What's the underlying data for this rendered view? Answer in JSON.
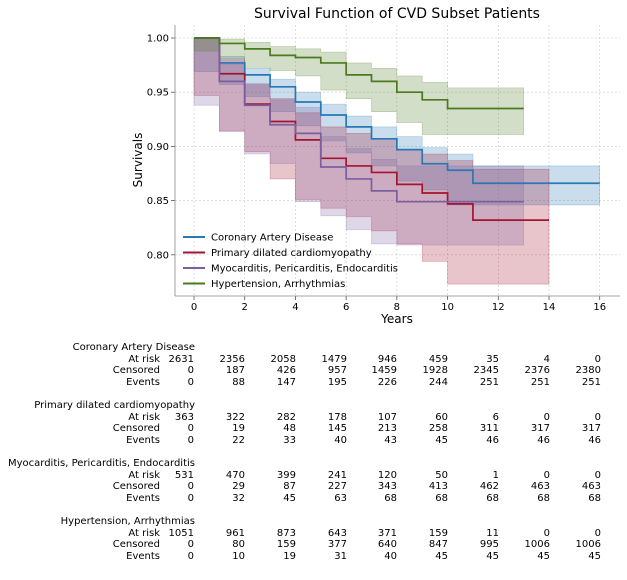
{
  "chart_data": {
    "type": "line",
    "title": "Survival Function of CVD Subset Patients",
    "xlabel": "Years",
    "ylabel": "Survivals",
    "xlim": [
      -0.75,
      16.8
    ],
    "ylim": [
      0.762,
      1.012
    ],
    "xticks": [
      "0",
      "2",
      "4",
      "6",
      "8",
      "10",
      "12",
      "14",
      "16"
    ],
    "yticks": [
      "0.80",
      "0.85",
      "0.90",
      "0.95",
      "1.00"
    ],
    "grid": true,
    "legend_position": "lower-left",
    "series": [
      {
        "name": "Coronary Artery Disease",
        "color": "#2878b5",
        "x": [
          0,
          1,
          2,
          3,
          4,
          5,
          6,
          7,
          8,
          9,
          10,
          11,
          12,
          13,
          14,
          16
        ],
        "y": [
          1.0,
          0.977,
          0.966,
          0.955,
          0.941,
          0.929,
          0.918,
          0.907,
          0.897,
          0.884,
          0.878,
          0.866,
          0.866,
          0.866,
          0.866,
          0.866
        ],
        "lower": [
          1.0,
          0.969,
          0.957,
          0.946,
          0.932,
          0.919,
          0.905,
          0.894,
          0.882,
          0.868,
          0.86,
          0.846,
          0.846,
          0.846,
          0.846,
          0.846
        ],
        "upper": [
          1.0,
          0.983,
          0.972,
          0.962,
          0.95,
          0.939,
          0.928,
          0.918,
          0.909,
          0.899,
          0.893,
          0.882,
          0.882,
          0.882,
          0.882,
          0.882
        ]
      },
      {
        "name": "Primary dilated cardiomyopathy",
        "color": "#a2142f",
        "x": [
          0,
          1,
          2,
          3,
          4,
          5,
          6,
          7,
          8,
          9,
          10,
          11,
          12,
          13,
          14
        ],
        "y": [
          1.0,
          0.967,
          0.939,
          0.923,
          0.906,
          0.889,
          0.882,
          0.876,
          0.865,
          0.857,
          0.847,
          0.832,
          0.832,
          0.832,
          0.832
        ],
        "lower": [
          1.0,
          0.947,
          0.914,
          0.895,
          0.87,
          0.851,
          0.843,
          0.835,
          0.822,
          0.81,
          0.794,
          0.773,
          0.773,
          0.773,
          0.773
        ],
        "upper": [
          1.0,
          0.98,
          0.957,
          0.944,
          0.931,
          0.918,
          0.912,
          0.907,
          0.897,
          0.893,
          0.887,
          0.879,
          0.879,
          0.879,
          0.879
        ]
      },
      {
        "name": "Myocarditis, Pericarditis, Endocarditis",
        "color": "#7b5fa0",
        "x": [
          0,
          1,
          2,
          3,
          4,
          5,
          6,
          7,
          8,
          9,
          10,
          11,
          12,
          13
        ],
        "y": [
          1.0,
          0.96,
          0.938,
          0.92,
          0.912,
          0.881,
          0.87,
          0.859,
          0.849,
          0.849,
          0.849,
          0.849,
          0.849,
          0.849
        ],
        "lower": [
          1.0,
          0.938,
          0.914,
          0.893,
          0.884,
          0.849,
          0.836,
          0.823,
          0.81,
          0.809,
          0.809,
          0.809,
          0.809,
          0.809
        ],
        "upper": [
          1.0,
          0.976,
          0.958,
          0.943,
          0.936,
          0.909,
          0.898,
          0.888,
          0.882,
          0.882,
          0.882,
          0.882,
          0.882,
          0.882
        ]
      },
      {
        "name": "Hypertension, Arrhythmias",
        "color": "#4b7a1e",
        "x": [
          0,
          1,
          2,
          3,
          4,
          5,
          6,
          7,
          8,
          9,
          10,
          11,
          12,
          13
        ],
        "y": [
          1.0,
          0.995,
          0.99,
          0.984,
          0.982,
          0.977,
          0.966,
          0.96,
          0.95,
          0.943,
          0.935,
          0.935,
          0.935,
          0.935
        ],
        "lower": [
          1.0,
          0.988,
          0.981,
          0.973,
          0.97,
          0.965,
          0.952,
          0.944,
          0.932,
          0.922,
          0.911,
          0.911,
          0.911,
          0.911
        ],
        "upper": [
          1.0,
          0.999,
          0.996,
          0.992,
          0.99,
          0.987,
          0.977,
          0.972,
          0.965,
          0.959,
          0.954,
          0.954,
          0.954,
          0.954
        ]
      }
    ]
  },
  "risk_table": {
    "times": [
      "0",
      "2",
      "4",
      "6",
      "8",
      "10",
      "12",
      "14",
      "16"
    ],
    "groups": [
      {
        "name": "Coronary Artery Disease",
        "rows": [
          {
            "label": "At risk",
            "values": [
              "2631",
              "2356",
              "2058",
              "1479",
              "946",
              "459",
              "35",
              "4",
              "0"
            ]
          },
          {
            "label": "Censored",
            "values": [
              "0",
              "187",
              "426",
              "957",
              "1459",
              "1928",
              "2345",
              "2376",
              "2380"
            ]
          },
          {
            "label": "Events",
            "values": [
              "0",
              "88",
              "147",
              "195",
              "226",
              "244",
              "251",
              "251",
              "251"
            ]
          }
        ]
      },
      {
        "name": "Primary dilated cardiomyopathy",
        "rows": [
          {
            "label": "At risk",
            "values": [
              "363",
              "322",
              "282",
              "178",
              "107",
              "60",
              "6",
              "0",
              "0"
            ]
          },
          {
            "label": "Censored",
            "values": [
              "0",
              "19",
              "48",
              "145",
              "213",
              "258",
              "311",
              "317",
              "317"
            ]
          },
          {
            "label": "Events",
            "values": [
              "0",
              "22",
              "33",
              "40",
              "43",
              "45",
              "46",
              "46",
              "46"
            ]
          }
        ]
      },
      {
        "name": "Myocarditis, Pericarditis, Endocarditis",
        "rows": [
          {
            "label": "At risk",
            "values": [
              "531",
              "470",
              "399",
              "241",
              "120",
              "50",
              "1",
              "0",
              "0"
            ]
          },
          {
            "label": "Censored",
            "values": [
              "0",
              "29",
              "87",
              "227",
              "343",
              "413",
              "462",
              "463",
              "463"
            ]
          },
          {
            "label": "Events",
            "values": [
              "0",
              "32",
              "45",
              "63",
              "68",
              "68",
              "68",
              "68",
              "68"
            ]
          }
        ]
      },
      {
        "name": "Hypertension, Arrhythmias",
        "rows": [
          {
            "label": "At risk",
            "values": [
              "1051",
              "961",
              "873",
              "643",
              "371",
              "159",
              "11",
              "0",
              "0"
            ]
          },
          {
            "label": "Censored",
            "values": [
              "0",
              "80",
              "159",
              "377",
              "640",
              "847",
              "995",
              "1006",
              "1006"
            ]
          },
          {
            "label": "Events",
            "values": [
              "0",
              "10",
              "19",
              "31",
              "40",
              "45",
              "45",
              "45",
              "45"
            ]
          }
        ]
      }
    ]
  }
}
